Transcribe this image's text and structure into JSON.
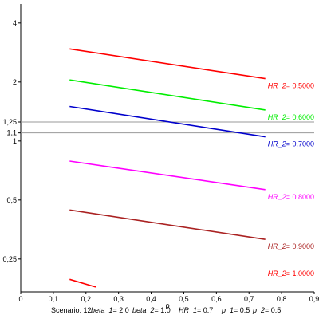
{
  "chart_data": {
    "type": "line",
    "xlabel": "ρ",
    "ylabel": "",
    "title": "",
    "xlim": [
      0,
      0.9
    ],
    "ylim": [
      0.17,
      5.0
    ],
    "y_scale": "log",
    "x_ticks": [
      "0",
      "0,1",
      "0,2",
      "0,3",
      "0,4",
      "0,5",
      "0,6",
      "0,7",
      "0,8",
      "0,9"
    ],
    "x_tick_values": [
      0,
      0.1,
      0.2,
      0.3,
      0.4,
      0.5,
      0.6,
      0.7,
      0.8,
      0.9
    ],
    "y_ticks": [
      "4",
      "2",
      "1,25",
      "1,1",
      "1",
      "0,5",
      "0,25"
    ],
    "y_tick_values": [
      4,
      2,
      1.25,
      1.1,
      1,
      0.5,
      0.25
    ],
    "reference_lines": [
      1.25,
      1.1
    ],
    "grid": false,
    "series": [
      {
        "name": "HR_2= 0.5000",
        "label_var": "HR_2",
        "label_val": "= 0.5000",
        "color": "#ff0000",
        "x": [
          0.15,
          0.75
        ],
        "y": [
          2.95,
          2.08
        ]
      },
      {
        "name": "HR_2= 0.6000",
        "label_var": "HR_2",
        "label_val": "= 0.6000",
        "color": "#00ee00",
        "x": [
          0.15,
          0.75
        ],
        "y": [
          2.05,
          1.44
        ]
      },
      {
        "name": "HR_2= 0.7000",
        "label_var": "HR_2",
        "label_val": "= 0.7000",
        "color": "#0000cc",
        "x": [
          0.15,
          0.75
        ],
        "y": [
          1.5,
          1.05
        ]
      },
      {
        "name": "HR_2= 0.8000",
        "label_var": "HR_2",
        "label_val": "= 0.8000",
        "color": "#ff00ff",
        "x": [
          0.15,
          0.75
        ],
        "y": [
          0.79,
          0.565
        ]
      },
      {
        "name": "HR_2= 0.9000",
        "label_var": "HR_2",
        "label_val": "= 0.9000",
        "color": "#aa2222",
        "x": [
          0.15,
          0.75
        ],
        "y": [
          0.445,
          0.315
        ]
      },
      {
        "name": "HR_2= 1.0000",
        "label_var": "HR_2",
        "label_val": "= 1.0000",
        "color": "#ff0000",
        "x": [
          0.15,
          0.23
        ],
        "y": [
          0.197,
          0.18
        ]
      }
    ]
  },
  "footer": {
    "scenario": "Scenario: 12",
    "params": [
      {
        "name": "beta_1",
        "value": "= 2.0"
      },
      {
        "name": "beta_2",
        "value": "= 1.0"
      },
      {
        "name": "HR_1",
        "value": "= 0.7"
      },
      {
        "name": "p_1",
        "value": "= 0.5"
      },
      {
        "name": "p_2",
        "value": "= 0.5"
      }
    ]
  }
}
